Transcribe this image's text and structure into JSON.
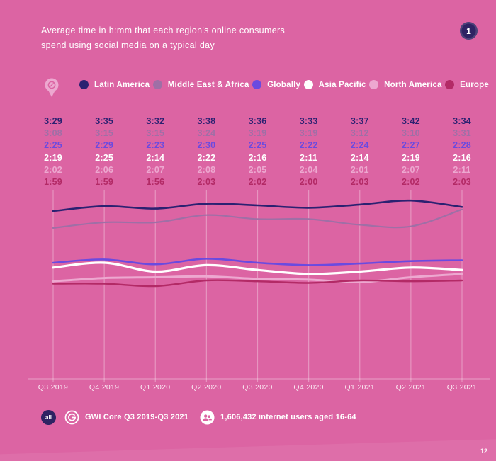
{
  "page": {
    "background": "#dc64a3",
    "accent_dark_purple": "#2e2363",
    "page_number": "12",
    "slide_badge_label": "1"
  },
  "header": {
    "title_line1": "Average time in h:mm that each region's online consumers",
    "title_line2": "spend using social media on a typical day"
  },
  "chart_data": {
    "type": "line",
    "title": "Average time in h:mm that each region's online consumers spend using social media on a typical day",
    "unit": "h:mm",
    "grid": "vertical-only",
    "legend_position": "top",
    "value_labels_shown": true,
    "categories": [
      "Q3 2019",
      "Q4 2019",
      "Q1 2020",
      "Q2 2020",
      "Q3 2020",
      "Q4 2020",
      "Q1 2021",
      "Q2 2021",
      "Q3 2021"
    ],
    "series": [
      {
        "name": "Latin America",
        "color": "#2b2171",
        "values": [
          "3:29",
          "3:35",
          "3:32",
          "3:38",
          "3:36",
          "3:33",
          "3:37",
          "3:42",
          "3:34"
        ]
      },
      {
        "name": "Middle East & Africa",
        "color": "#9f6fa6",
        "values": [
          "3:08",
          "3:15",
          "3:15",
          "3:24",
          "3:19",
          "3:19",
          "3:12",
          "3:10",
          "3:31"
        ]
      },
      {
        "name": "Globally",
        "color": "#6a4ae0",
        "values": [
          "2:25",
          "2:29",
          "2:23",
          "2:30",
          "2:25",
          "2:22",
          "2:24",
          "2:27",
          "2:28"
        ]
      },
      {
        "name": "Asia Pacific",
        "color": "#ffffff",
        "values": [
          "2:19",
          "2:25",
          "2:14",
          "2:22",
          "2:16",
          "2:11",
          "2:14",
          "2:19",
          "2:16"
        ]
      },
      {
        "name": "North America",
        "color": "#eda8d0",
        "values": [
          "2:02",
          "2:06",
          "2:07",
          "2:08",
          "2:05",
          "2:04",
          "2:01",
          "2:07",
          "2:11"
        ]
      },
      {
        "name": "Europe",
        "color": "#b32a66",
        "values": [
          "1:59",
          "1:59",
          "1:56",
          "2:03",
          "2:02",
          "2:00",
          "2:03",
          "2:02",
          "2:03"
        ]
      }
    ]
  },
  "footer": {
    "audience_badge": "all",
    "source_label": "GWI Core Q3 2019-Q3 2021",
    "base_label": "1,606,432 internet users aged 16-64"
  }
}
